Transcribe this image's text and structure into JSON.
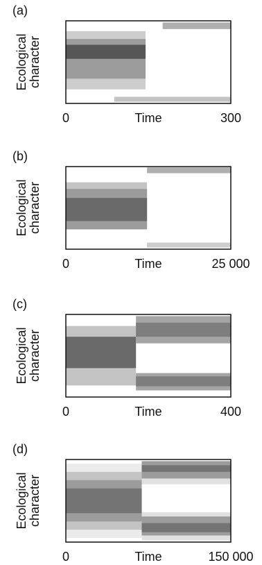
{
  "chart_data": [
    {
      "type": "heatmap",
      "label": "(a)",
      "ylabel": [
        "Ecological",
        "character"
      ],
      "xlabel": "Time",
      "xlim": [
        0,
        300
      ],
      "xticks": [
        0,
        300
      ],
      "ylim": [
        0,
        1
      ],
      "cells": [
        {
          "x0": 0,
          "x1": 145,
          "y0": 0.17,
          "y1": 0.875,
          "z": 0.25
        },
        {
          "x0": 0,
          "x1": 145,
          "y0": 0.3,
          "y1": 0.78,
          "z": 0.5
        },
        {
          "x0": 0,
          "x1": 145,
          "y0": 0.54,
          "y1": 0.71,
          "z": 0.85
        },
        {
          "x0": 176,
          "x1": 300,
          "y0": 0.9,
          "y1": 0.98,
          "z": 0.4
        },
        {
          "x0": 88,
          "x1": 300,
          "y0": 0.02,
          "y1": 0.08,
          "z": 0.3
        }
      ]
    },
    {
      "type": "heatmap",
      "label": "(b)",
      "ylabel": [
        "Ecological",
        "character"
      ],
      "xlabel": "Time",
      "xlim": [
        0,
        25000
      ],
      "xticks": [
        0,
        {
          "value": 25000,
          "label": "25 000"
        }
      ],
      "ylim": [
        0,
        1
      ],
      "cells": [
        {
          "x0": 0,
          "x1": 12300,
          "y0": 0.24,
          "y1": 0.81,
          "z": 0.3
        },
        {
          "x0": 0,
          "x1": 12300,
          "y0": 0.24,
          "y1": 0.73,
          "z": 0.5
        },
        {
          "x0": 0,
          "x1": 12300,
          "y0": 0.34,
          "y1": 0.62,
          "z": 0.75
        },
        {
          "x0": 12300,
          "x1": 25000,
          "y0": 0.92,
          "y1": 0.99,
          "z": 0.4
        },
        {
          "x0": 12300,
          "x1": 25000,
          "y0": 0.02,
          "y1": 0.08,
          "z": 0.25
        }
      ]
    },
    {
      "type": "heatmap",
      "label": "(c)",
      "ylabel": [
        "Ecological",
        "character"
      ],
      "xlabel": "Time",
      "xlim": [
        0,
        400
      ],
      "xticks": [
        0,
        400
      ],
      "ylim": [
        0,
        1
      ],
      "cells": [
        {
          "x0": 0,
          "x1": 170,
          "y0": 0.14,
          "y1": 0.86,
          "z": 0.3
        },
        {
          "x0": 0,
          "x1": 170,
          "y0": 0.35,
          "y1": 0.73,
          "z": 0.75
        },
        {
          "x0": 170,
          "x1": 400,
          "y0": 0.65,
          "y1": 0.98,
          "z": 0.45
        },
        {
          "x0": 170,
          "x1": 400,
          "y0": 0.73,
          "y1": 0.9,
          "z": 0.65
        },
        {
          "x0": 170,
          "x1": 400,
          "y0": 0.08,
          "y1": 0.29,
          "z": 0.45
        },
        {
          "x0": 170,
          "x1": 400,
          "y0": 0.13,
          "y1": 0.25,
          "z": 0.65
        }
      ]
    },
    {
      "type": "heatmap",
      "label": "(d)",
      "ylabel": [
        "Ecological",
        "character"
      ],
      "xlabel": "Time",
      "xlim": [
        0,
        150000
      ],
      "xticks": [
        0,
        {
          "value": 150000,
          "label": "150 000"
        }
      ],
      "ylim": [
        0,
        1
      ],
      "cells": [
        {
          "x0": 0,
          "x1": 69000,
          "y0": 0.05,
          "y1": 0.95,
          "z": 0.1
        },
        {
          "x0": 0,
          "x1": 69000,
          "y0": 0.15,
          "y1": 0.85,
          "z": 0.3
        },
        {
          "x0": 0,
          "x1": 69000,
          "y0": 0.25,
          "y1": 0.75,
          "z": 0.5
        },
        {
          "x0": 0,
          "x1": 69000,
          "y0": 0.35,
          "y1": 0.65,
          "z": 0.7
        },
        {
          "x0": 69000,
          "x1": 150000,
          "y0": 0.7,
          "y1": 0.98,
          "z": 0.15
        },
        {
          "x0": 69000,
          "x1": 150000,
          "y0": 0.77,
          "y1": 0.98,
          "z": 0.5
        },
        {
          "x0": 69000,
          "x1": 150000,
          "y0": 0.85,
          "y1": 0.93,
          "z": 0.7
        },
        {
          "x0": 69000,
          "x1": 150000,
          "y0": 0.02,
          "y1": 0.36,
          "z": 0.15
        },
        {
          "x0": 69000,
          "x1": 150000,
          "y0": 0.08,
          "y1": 0.31,
          "z": 0.5
        },
        {
          "x0": 69000,
          "x1": 150000,
          "y0": 0.12,
          "y1": 0.23,
          "z": 0.7
        }
      ]
    }
  ]
}
